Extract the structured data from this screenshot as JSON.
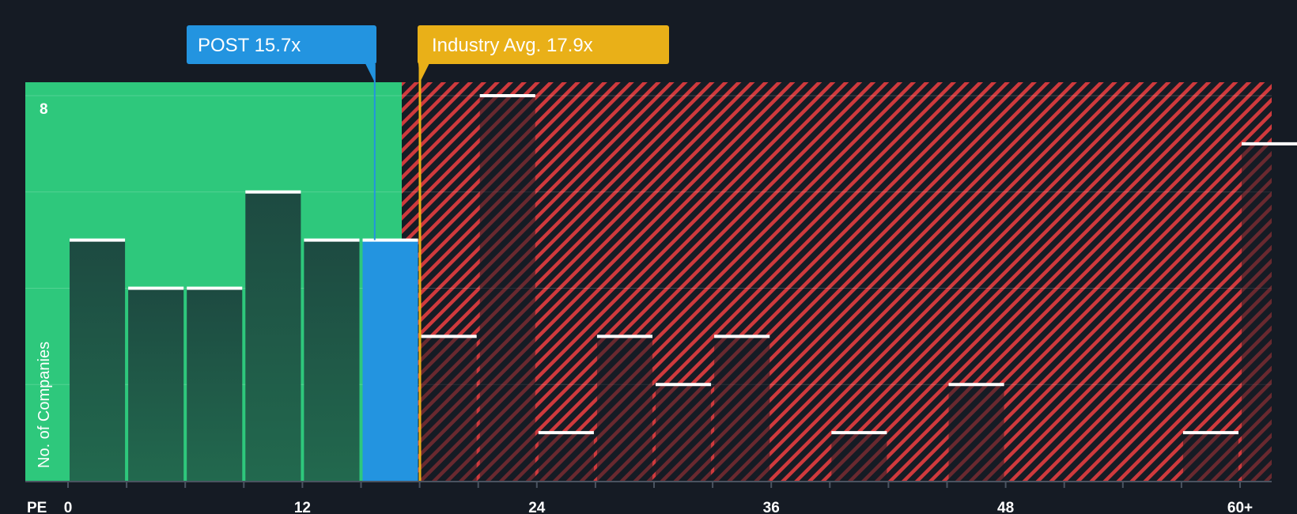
{
  "chart_data": {
    "type": "bar",
    "title": "",
    "xlabel": "PE",
    "ylabel": "No. of Companies",
    "x_tick_labels": [
      "0",
      "12",
      "24",
      "36",
      "48",
      "60+"
    ],
    "x_tick_values": [
      0,
      12,
      24,
      36,
      48,
      60
    ],
    "xlim": [
      -2.2,
      61.5
    ],
    "ylim": [
      0,
      8.3
    ],
    "y_tick_labels": [
      "8"
    ],
    "y_tick_values": [
      8
    ],
    "y_gridlines": [
      2,
      4,
      6,
      8
    ],
    "bin_width": 3,
    "bins": [
      {
        "start": 0,
        "value": 5
      },
      {
        "start": 3,
        "value": 4
      },
      {
        "start": 6,
        "value": 4
      },
      {
        "start": 9,
        "value": 6
      },
      {
        "start": 12,
        "value": 5
      },
      {
        "start": 15,
        "value": 5
      },
      {
        "start": 18,
        "value": 3
      },
      {
        "start": 21,
        "value": 8
      },
      {
        "start": 24,
        "value": 1
      },
      {
        "start": 27,
        "value": 3
      },
      {
        "start": 30,
        "value": 2
      },
      {
        "start": 33,
        "value": 3
      },
      {
        "start": 36,
        "value": 0
      },
      {
        "start": 39,
        "value": 1
      },
      {
        "start": 42,
        "value": 0
      },
      {
        "start": 45,
        "value": 2
      },
      {
        "start": 48,
        "value": 0
      },
      {
        "start": 51,
        "value": 0
      },
      {
        "start": 54,
        "value": 0
      },
      {
        "start": 57,
        "value": 1
      },
      {
        "start": 60,
        "value": 7
      }
    ],
    "company": {
      "ticker": "POST",
      "value": 15.7,
      "label": "POST 15.7x",
      "color": "#2394e0"
    },
    "industry_avg": {
      "value": 17.9,
      "label": "Industry Avg. 17.9x",
      "color": "#e9b018"
    },
    "colors": {
      "background": "#151b24",
      "undervalued_zone": "#2ec87c",
      "overvalued_zone": "#cf3a3d",
      "bar_fill": "#1e4a3f",
      "bar_cap": "#ffffff"
    }
  }
}
